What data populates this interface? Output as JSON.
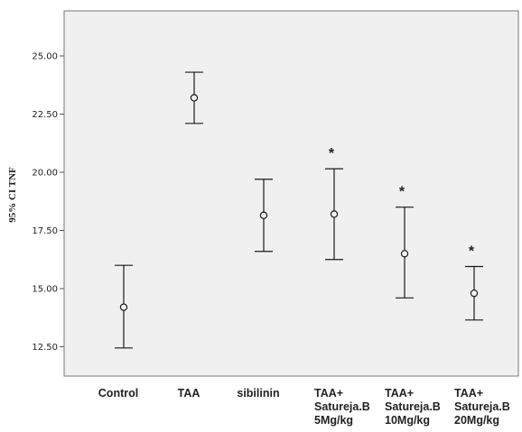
{
  "chart_data": {
    "type": "errorbar",
    "ylabel": "95% CI TNF",
    "ylim": [
      11.25,
      26.25
    ],
    "yticks": [
      12.5,
      15.0,
      17.5,
      20.0,
      22.5,
      25.0
    ],
    "ytick_labels": [
      "12.50",
      "15.00",
      "17.50",
      "20.00",
      "22.50",
      "25.00"
    ],
    "categories": [
      [
        "Control"
      ],
      [
        "TAA"
      ],
      [
        "sibilinin"
      ],
      [
        "TAA+",
        "Satureja.B",
        "5Mg/kg"
      ],
      [
        "TAA+",
        "Satureja.B",
        "10Mg/kg"
      ],
      [
        "TAA+",
        "Satureja.B",
        "20Mg/kg"
      ]
    ],
    "series": [
      {
        "mean": [
          14.2,
          23.2,
          18.15,
          18.2,
          16.5,
          14.8
        ],
        "lower": [
          12.45,
          22.1,
          16.6,
          16.25,
          14.6,
          13.65
        ],
        "upper": [
          16.0,
          24.3,
          19.7,
          20.15,
          18.5,
          15.95
        ]
      }
    ],
    "significance": [
      "",
      "",
      "",
      "*",
      "*",
      "*"
    ],
    "grid": false,
    "plot_background": "#f0f0f0",
    "colors": {
      "bars": "#1a1a1a",
      "axis": "#555555"
    }
  }
}
